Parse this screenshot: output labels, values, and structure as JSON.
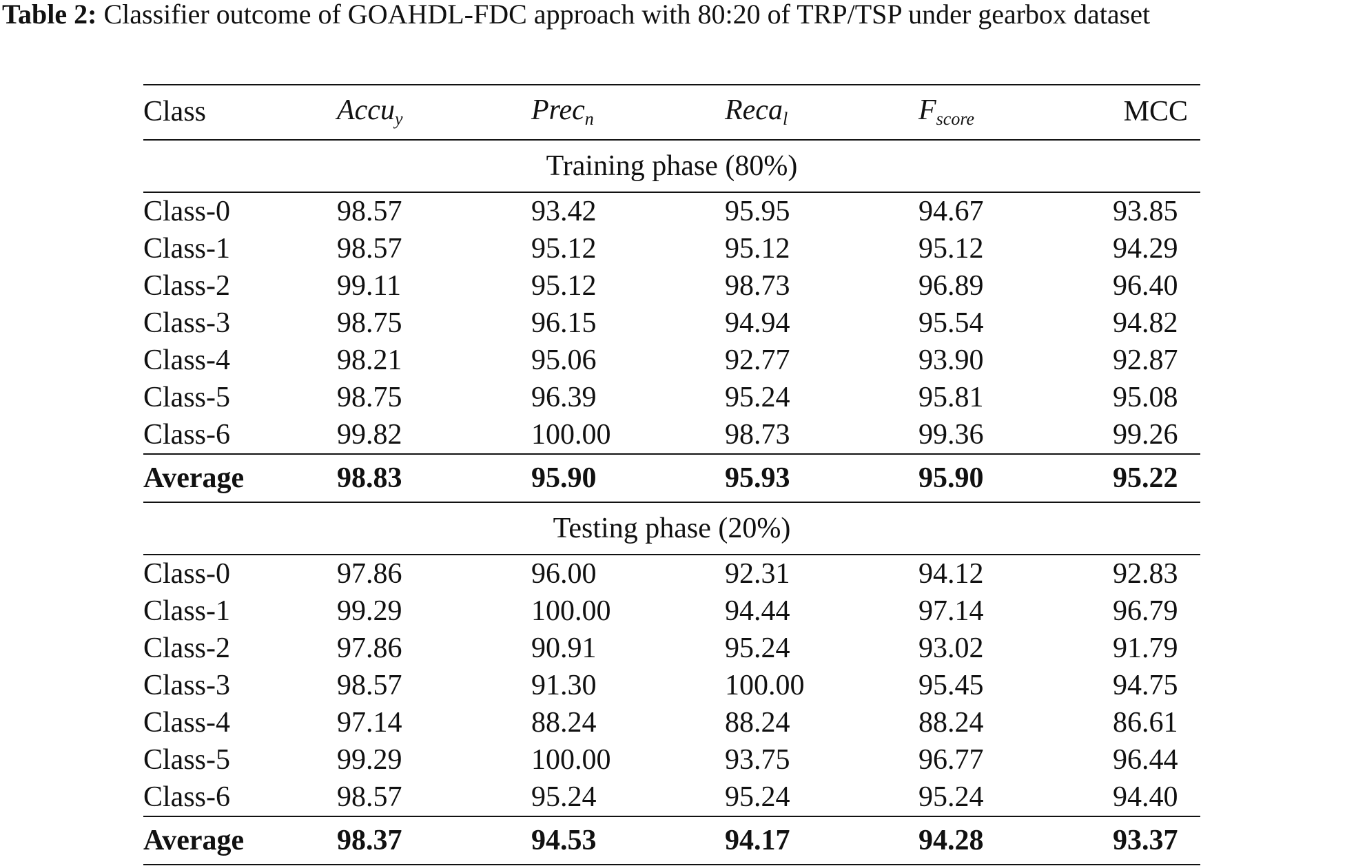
{
  "caption": {
    "label": "Table 2:",
    "text": "Classifier outcome of GOAHDL-FDC approach with 80:20 of TRP/TSP under gearbox dataset"
  },
  "table": {
    "headers": {
      "class": "Class",
      "accuracy": {
        "base": "Accu",
        "sub": "y"
      },
      "precision": {
        "base": "Prec",
        "sub": "n"
      },
      "recall": {
        "base": "Reca",
        "sub": "l"
      },
      "fscore": {
        "base": "F",
        "sub": "score"
      },
      "mcc": "MCC"
    },
    "sections": [
      {
        "title": "Training phase (80%)",
        "rows": [
          [
            "Class-0",
            "98.57",
            "93.42",
            "95.95",
            "94.67",
            "93.85"
          ],
          [
            "Class-1",
            "98.57",
            "95.12",
            "95.12",
            "95.12",
            "94.29"
          ],
          [
            "Class-2",
            "99.11",
            "95.12",
            "98.73",
            "96.89",
            "96.40"
          ],
          [
            "Class-3",
            "98.75",
            "96.15",
            "94.94",
            "95.54",
            "94.82"
          ],
          [
            "Class-4",
            "98.21",
            "95.06",
            "92.77",
            "93.90",
            "92.87"
          ],
          [
            "Class-5",
            "98.75",
            "96.39",
            "95.24",
            "95.81",
            "95.08"
          ],
          [
            "Class-6",
            "99.82",
            "100.00",
            "98.73",
            "99.36",
            "99.26"
          ]
        ],
        "average": [
          "Average",
          "98.83",
          "95.90",
          "95.93",
          "95.90",
          "95.22"
        ]
      },
      {
        "title": "Testing phase (20%)",
        "rows": [
          [
            "Class-0",
            "97.86",
            "96.00",
            "92.31",
            "94.12",
            "92.83"
          ],
          [
            "Class-1",
            "99.29",
            "100.00",
            "94.44",
            "97.14",
            "96.79"
          ],
          [
            "Class-2",
            "97.86",
            "90.91",
            "95.24",
            "93.02",
            "91.79"
          ],
          [
            "Class-3",
            "98.57",
            "91.30",
            "100.00",
            "95.45",
            "94.75"
          ],
          [
            "Class-4",
            "97.14",
            "88.24",
            "88.24",
            "88.24",
            "86.61"
          ],
          [
            "Class-5",
            "99.29",
            "100.00",
            "93.75",
            "96.77",
            "96.44"
          ],
          [
            "Class-6",
            "98.57",
            "95.24",
            "95.24",
            "95.24",
            "94.40"
          ]
        ],
        "average": [
          "Average",
          "98.37",
          "94.53",
          "94.17",
          "94.28",
          "93.37"
        ]
      }
    ]
  }
}
